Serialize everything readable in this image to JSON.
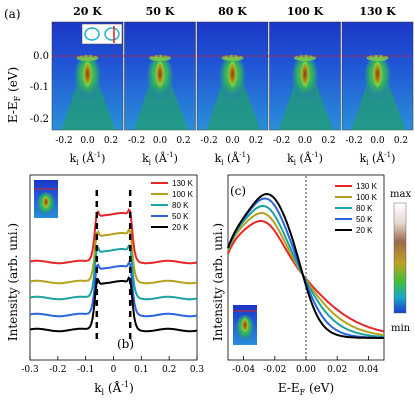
{
  "panel_a": {
    "label": "(a)",
    "temperatures": [
      "20 K",
      "50 K",
      "80 K",
      "100 K",
      "130 K"
    ],
    "ylabel": "E-E",
    "ylabel_sub": "F",
    "ylabel_unit": " (eV)",
    "yticks": [
      "0.0",
      "-0.1",
      "-0.2"
    ],
    "xticks": [
      "-0.2",
      "0.0",
      "0.2"
    ],
    "xlabel_main": "k",
    "xlabel_sub": "l",
    "xlabel_unit": " (Å",
    "xlabel_sup": "-1",
    "xlabel_close": ")"
  },
  "panel_b": {
    "label": "(b)",
    "legend": [
      "130 K",
      "100 K",
      "80 K",
      "50 K",
      "20 K"
    ],
    "colors": [
      "#e8262a",
      "#b5a21b",
      "#1aa3a0",
      "#2a64e0",
      "#000000"
    ],
    "ylabel": "Intensity (arb. uni.)",
    "xticks": [
      "-0.3",
      "-0.2",
      "-0.1",
      "0",
      "0.1",
      "0.2",
      "0.3"
    ],
    "xlabel_main": "k",
    "xlabel_sub": "l",
    "xlabel_unit": " (Å",
    "xlabel_sup": "-1",
    "xlabel_close": ")"
  },
  "panel_c": {
    "label": "(c)",
    "legend": [
      "130 K",
      "100 K",
      "80 K",
      "50 K",
      "20 K"
    ],
    "colors": [
      "#e8262a",
      "#b5a21b",
      "#1aa3a0",
      "#2a64e0",
      "#000000"
    ],
    "ylabel": "Intensity (arb. uni.)",
    "xticks": [
      "-0.04",
      "-0.02",
      "0.00",
      "0.02",
      "0.04"
    ],
    "xlabel_main": "E-E",
    "xlabel_sub": "F",
    "xlabel_unit": " (eV)"
  },
  "colorbar": {
    "max": "max",
    "min": "min"
  },
  "chart_data": [
    {
      "type": "heatmap",
      "panel": "(a)",
      "series": [
        {
          "name": "20 K"
        },
        {
          "name": "50 K"
        },
        {
          "name": "80 K"
        },
        {
          "name": "100 K"
        },
        {
          "name": "130 K"
        }
      ],
      "x_range": [
        -0.3,
        0.3
      ],
      "y_range": [
        -0.25,
        0.08
      ],
      "fermi_level": 0.0
    },
    {
      "type": "line",
      "panel": "(b)",
      "xlim": [
        -0.3,
        0.3
      ],
      "peaks": [
        -0.06,
        0.06
      ],
      "series": [
        {
          "name": "130 K",
          "offset": 5
        },
        {
          "name": "100 K",
          "offset": 4
        },
        {
          "name": "80 K",
          "offset": 3
        },
        {
          "name": "50 K",
          "offset": 2
        },
        {
          "name": "20 K",
          "offset": 1
        }
      ]
    },
    {
      "type": "line",
      "panel": "(c)",
      "xlim": [
        -0.05,
        0.05
      ],
      "series": [
        {
          "name": "130 K",
          "width": 0.018
        },
        {
          "name": "100 K",
          "width": 0.014
        },
        {
          "name": "80 K",
          "width": 0.011
        },
        {
          "name": "50 K",
          "width": 0.008
        },
        {
          "name": "20 K",
          "width": 0.006
        }
      ]
    }
  ]
}
